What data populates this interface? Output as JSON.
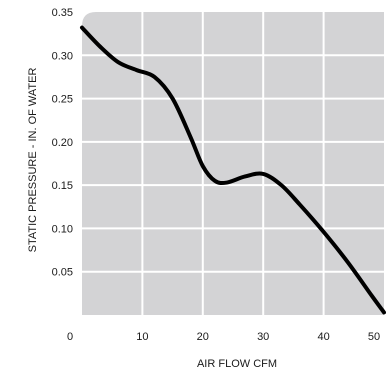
{
  "chart_data": {
    "type": "line",
    "title": "",
    "xlabel": "AIR FLOW CFM",
    "ylabel": "STATIC PRESSURE - IN. OF WATER",
    "xlim": [
      0,
      50
    ],
    "ylim": [
      0,
      0.35
    ],
    "x_ticks": [
      "0",
      "10",
      "20",
      "30",
      "40",
      "50"
    ],
    "y_ticks": [
      "0.05",
      "0.10",
      "0.15",
      "0.20",
      "0.25",
      "0.30",
      "0.35"
    ],
    "grid": true,
    "legend": "none",
    "colors": {
      "plot_background": "#d3d3d5",
      "grid": "#ffffff",
      "line": "#000000"
    },
    "series": [
      {
        "x": [
          0,
          3,
          6,
          9,
          12,
          15,
          18,
          20,
          22,
          24,
          27,
          30,
          33,
          36,
          40,
          44,
          48,
          50
        ],
        "values": [
          0.332,
          0.31,
          0.292,
          0.283,
          0.275,
          0.25,
          0.205,
          0.172,
          0.155,
          0.153,
          0.16,
          0.163,
          0.15,
          0.128,
          0.096,
          0.061,
          0.022,
          0.003
        ]
      }
    ]
  }
}
